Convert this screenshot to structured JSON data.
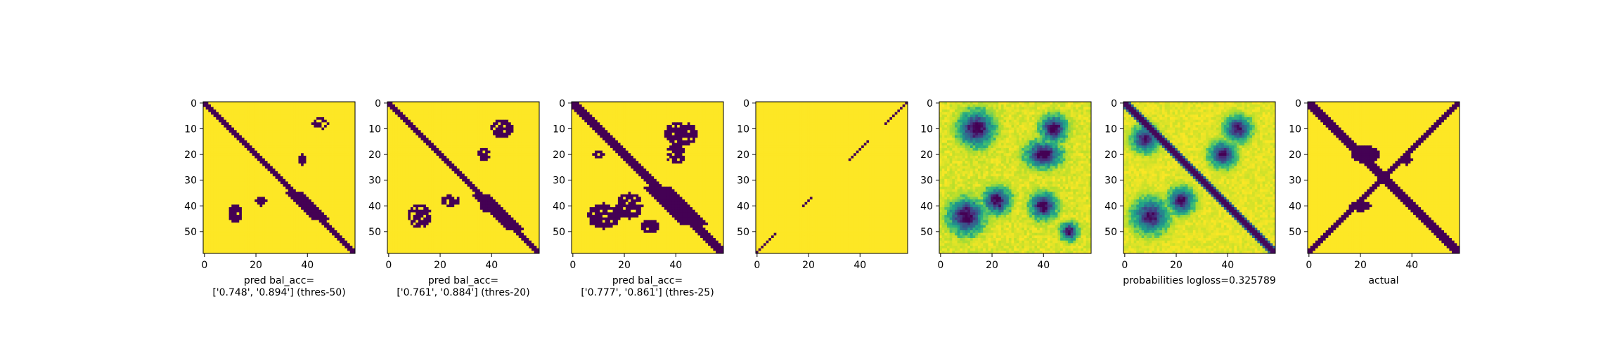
{
  "chart_data": [
    {
      "type": "heatmap",
      "pattern": "binary-pred-a",
      "caption_lines": [
        "pred bal_acc=",
        "['0.748', '0.894'] (thres-50)"
      ],
      "x_ticks": [
        0,
        20,
        40
      ],
      "y_ticks": [
        0,
        10,
        20,
        30,
        40,
        50
      ],
      "size": 59,
      "colormap": "viridis"
    },
    {
      "type": "heatmap",
      "pattern": "binary-pred-b",
      "caption_lines": [
        "pred bal_acc=",
        "['0.761', '0.884'] (thres-20)"
      ],
      "x_ticks": [
        0,
        20,
        40
      ],
      "y_ticks": [
        0,
        10,
        20,
        30,
        40,
        50
      ],
      "size": 59,
      "colormap": "viridis"
    },
    {
      "type": "heatmap",
      "pattern": "binary-pred-c",
      "caption_lines": [
        "pred bal_acc=",
        "['0.777', '0.861'] (thres-25)"
      ],
      "x_ticks": [
        0,
        20,
        40
      ],
      "y_ticks": [
        0,
        10,
        20,
        30,
        40,
        50
      ],
      "size": 59,
      "colormap": "viridis"
    },
    {
      "type": "heatmap",
      "pattern": "antidiagonal",
      "caption_lines": [],
      "x_ticks": [
        0,
        20,
        40
      ],
      "y_ticks": [
        0,
        10,
        20,
        30,
        40,
        50
      ],
      "size": 59,
      "colormap": "viridis"
    },
    {
      "type": "heatmap",
      "pattern": "probabilities-blobs",
      "caption_lines": [],
      "x_ticks": [
        0,
        20,
        40
      ],
      "y_ticks": [
        0,
        10,
        20,
        30,
        40,
        50
      ],
      "size": 59,
      "colormap": "viridis"
    },
    {
      "type": "heatmap",
      "pattern": "probabilities-diag",
      "caption_lines": [
        "probabilities logloss=0.325789"
      ],
      "x_ticks": [
        0,
        20,
        40
      ],
      "y_ticks": [
        0,
        10,
        20,
        30,
        40,
        50
      ],
      "size": 59,
      "colormap": "viridis"
    },
    {
      "type": "heatmap",
      "pattern": "actual",
      "caption_lines": [
        "actual"
      ],
      "x_ticks": [
        0,
        20,
        40
      ],
      "y_ticks": [
        0,
        10,
        20,
        30,
        40,
        50
      ],
      "size": 59,
      "colormap": "viridis"
    }
  ]
}
